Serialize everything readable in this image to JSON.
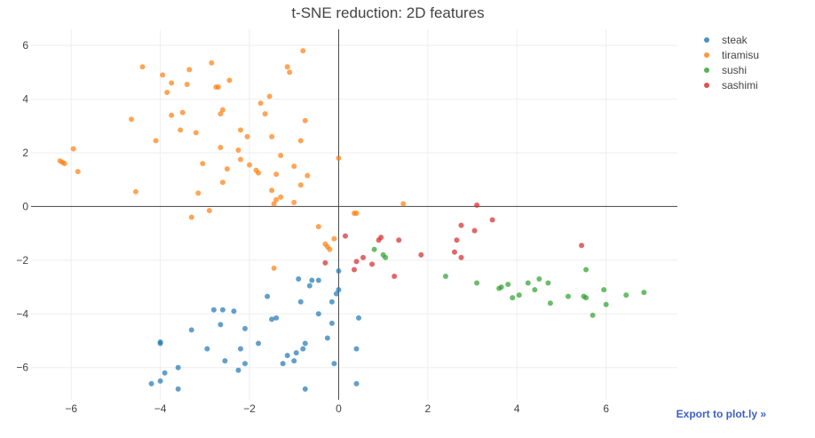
{
  "chart_data": {
    "type": "scatter",
    "title": "t-SNE reduction: 2D features",
    "xlim": [
      -6.9,
      7.6
    ],
    "ylim": [
      -7.2,
      6.6
    ],
    "x_ticks": [
      -6,
      -4,
      -2,
      0,
      2,
      4,
      6
    ],
    "y_ticks": [
      -6,
      -4,
      -2,
      0,
      2,
      4,
      6
    ],
    "tick_labels": {
      "x": [
        "−6",
        "−4",
        "−2",
        "0",
        "2",
        "4",
        "6"
      ],
      "y": [
        "−6",
        "−4",
        "−2",
        "0",
        "2",
        "4",
        "6"
      ]
    },
    "grid": true,
    "legend_position": "top-right",
    "series": [
      {
        "name": "steak",
        "color": "#1f77b4",
        "points": [
          [
            -4.2,
            -6.6
          ],
          [
            -4.0,
            -6.5
          ],
          [
            -3.9,
            -6.2
          ],
          [
            -3.6,
            -6.0
          ],
          [
            -3.6,
            -6.8
          ],
          [
            -4.0,
            -5.1
          ],
          [
            -4.0,
            -5.05
          ],
          [
            -3.3,
            -4.6
          ],
          [
            -2.95,
            -5.3
          ],
          [
            -2.8,
            -3.85
          ],
          [
            -2.65,
            -4.4
          ],
          [
            -2.6,
            -3.85
          ],
          [
            -2.55,
            -5.75
          ],
          [
            -2.35,
            -3.9
          ],
          [
            -2.25,
            -6.1
          ],
          [
            -2.2,
            -5.3
          ],
          [
            -2.1,
            -4.55
          ],
          [
            -2.1,
            -5.85
          ],
          [
            -1.8,
            -5.1
          ],
          [
            -1.6,
            -3.35
          ],
          [
            -1.5,
            -4.2
          ],
          [
            -1.4,
            -4.15
          ],
          [
            -1.25,
            -5.85
          ],
          [
            -1.15,
            -5.55
          ],
          [
            -1.0,
            -5.75
          ],
          [
            -0.95,
            -5.45
          ],
          [
            -0.9,
            -2.7
          ],
          [
            -0.85,
            -3.55
          ],
          [
            -0.8,
            -5.3
          ],
          [
            -0.75,
            -5.1
          ],
          [
            -0.75,
            -6.8
          ],
          [
            -0.65,
            -2.95
          ],
          [
            -0.6,
            -2.75
          ],
          [
            -0.45,
            -2.75
          ],
          [
            -0.45,
            -4.0
          ],
          [
            -0.25,
            -4.9
          ],
          [
            -0.15,
            -4.35
          ],
          [
            -0.15,
            -3.55
          ],
          [
            -0.1,
            -5.85
          ],
          [
            -0.05,
            -3.25
          ],
          [
            0.0,
            -3.1
          ],
          [
            0.0,
            -2.4
          ],
          [
            0.4,
            -5.3
          ],
          [
            0.4,
            -6.6
          ],
          [
            0.45,
            -4.15
          ]
        ]
      },
      {
        "name": "tiramisu",
        "color": "#ff7f0e",
        "points": [
          [
            -6.25,
            1.7
          ],
          [
            -6.2,
            1.65
          ],
          [
            -6.15,
            1.6
          ],
          [
            -5.95,
            2.15
          ],
          [
            -5.85,
            1.3
          ],
          [
            -4.65,
            3.25
          ],
          [
            -4.55,
            0.55
          ],
          [
            -4.4,
            5.2
          ],
          [
            -4.1,
            2.45
          ],
          [
            -3.95,
            4.9
          ],
          [
            -3.85,
            4.25
          ],
          [
            -3.75,
            4.6
          ],
          [
            -3.75,
            3.4
          ],
          [
            -3.55,
            2.85
          ],
          [
            -3.5,
            3.5
          ],
          [
            -3.4,
            4.55
          ],
          [
            -3.35,
            5.1
          ],
          [
            -3.3,
            -0.4
          ],
          [
            -3.2,
            2.75
          ],
          [
            -3.15,
            0.5
          ],
          [
            -3.05,
            1.6
          ],
          [
            -2.9,
            -0.15
          ],
          [
            -2.85,
            5.35
          ],
          [
            -2.75,
            4.45
          ],
          [
            -2.7,
            4.45
          ],
          [
            -2.65,
            3.45
          ],
          [
            -2.65,
            2.2
          ],
          [
            -2.6,
            3.6
          ],
          [
            -2.6,
            0.9
          ],
          [
            -2.5,
            1.4
          ],
          [
            -2.45,
            4.7
          ],
          [
            -2.25,
            2.1
          ],
          [
            -2.2,
            1.75
          ],
          [
            -2.2,
            2.85
          ],
          [
            -2.05,
            2.6
          ],
          [
            -2.0,
            1.55
          ],
          [
            -1.85,
            1.35
          ],
          [
            -1.8,
            1.25
          ],
          [
            -1.75,
            3.85
          ],
          [
            -1.65,
            3.45
          ],
          [
            -1.55,
            4.1
          ],
          [
            -1.5,
            2.6
          ],
          [
            -1.5,
            0.6
          ],
          [
            -1.45,
            0.1
          ],
          [
            -1.45,
            -2.3
          ],
          [
            -1.4,
            0.25
          ],
          [
            -1.4,
            1.2
          ],
          [
            -1.3,
            0.35
          ],
          [
            -1.3,
            1.9
          ],
          [
            -1.15,
            5.2
          ],
          [
            -1.1,
            5.0
          ],
          [
            -1.0,
            1.5
          ],
          [
            -1.0,
            0.15
          ],
          [
            -0.85,
            0.8
          ],
          [
            -0.85,
            2.45
          ],
          [
            -0.8,
            5.8
          ],
          [
            -0.75,
            3.2
          ],
          [
            -0.7,
            1.15
          ],
          [
            -0.45,
            -0.75
          ],
          [
            -0.3,
            -1.4
          ],
          [
            -0.25,
            -1.5
          ],
          [
            -0.2,
            -1.6
          ],
          [
            -0.1,
            -1.2
          ],
          [
            0.0,
            1.8
          ],
          [
            0.35,
            -0.25
          ],
          [
            0.4,
            -0.25
          ],
          [
            1.45,
            0.1
          ]
        ]
      },
      {
        "name": "sushi",
        "color": "#2ca02c",
        "points": [
          [
            0.8,
            -1.6
          ],
          [
            1.0,
            -1.8
          ],
          [
            1.05,
            -1.9
          ],
          [
            2.4,
            -2.6
          ],
          [
            3.1,
            -2.85
          ],
          [
            3.6,
            -3.05
          ],
          [
            3.65,
            -3.0
          ],
          [
            3.8,
            -2.9
          ],
          [
            3.9,
            -3.4
          ],
          [
            4.05,
            -3.3
          ],
          [
            4.25,
            -2.85
          ],
          [
            4.4,
            -3.1
          ],
          [
            4.5,
            -2.7
          ],
          [
            4.7,
            -2.85
          ],
          [
            4.75,
            -3.6
          ],
          [
            5.15,
            -3.35
          ],
          [
            5.5,
            -3.35
          ],
          [
            5.55,
            -3.4
          ],
          [
            5.55,
            -2.35
          ],
          [
            5.7,
            -4.05
          ],
          [
            5.95,
            -3.1
          ],
          [
            6.0,
            -3.65
          ],
          [
            6.45,
            -3.3
          ],
          [
            6.85,
            -3.2
          ]
        ]
      },
      {
        "name": "sashimi",
        "color": "#d62728",
        "points": [
          [
            -0.3,
            -2.1
          ],
          [
            0.15,
            -1.1
          ],
          [
            0.35,
            -2.35
          ],
          [
            0.4,
            -2.05
          ],
          [
            0.55,
            -1.9
          ],
          [
            0.75,
            -2.15
          ],
          [
            0.9,
            -1.25
          ],
          [
            0.95,
            -1.15
          ],
          [
            1.25,
            -2.6
          ],
          [
            1.35,
            -1.25
          ],
          [
            1.85,
            -1.8
          ],
          [
            2.6,
            -1.7
          ],
          [
            2.65,
            -1.25
          ],
          [
            2.75,
            -0.7
          ],
          [
            2.75,
            -1.9
          ],
          [
            3.05,
            -0.9
          ],
          [
            3.1,
            0.05
          ],
          [
            3.45,
            -0.5
          ],
          [
            5.45,
            -1.45
          ]
        ]
      }
    ]
  },
  "export_link": "Export to plot.ly »"
}
